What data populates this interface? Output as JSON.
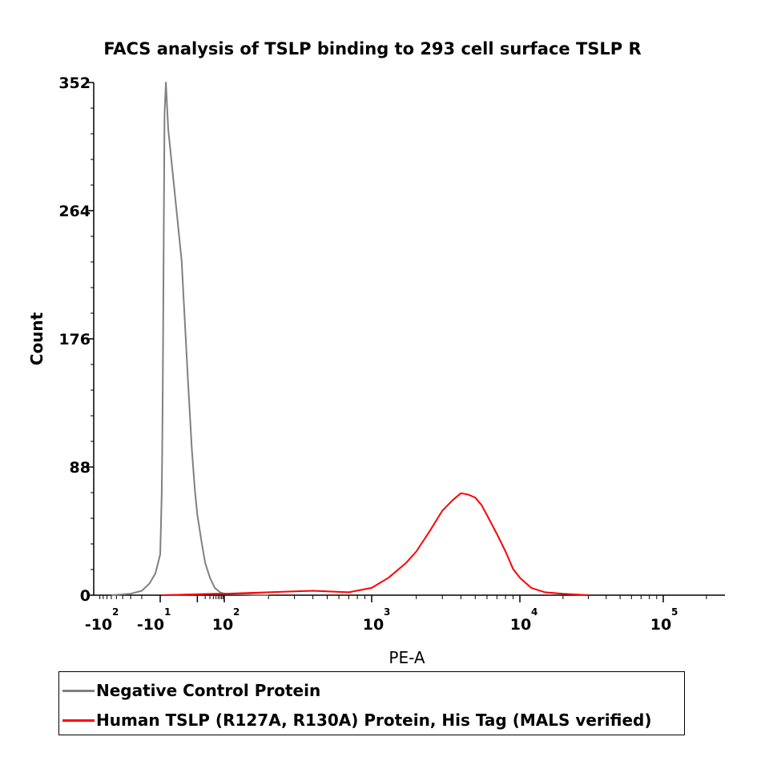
{
  "chart_data": {
    "type": "line",
    "title": "FACS analysis of  TSLP binding to 293 cell surface TSLP R",
    "xlabel": "PE-A",
    "ylabel": "Count",
    "x_scale": "biexponential (log above ~10^2)",
    "ylim": [
      0,
      352
    ],
    "y_ticks": [
      0,
      88,
      176,
      264,
      352
    ],
    "x_ticks": [
      {
        "base": "-10",
        "exp": "2"
      },
      {
        "base": "-10",
        "exp": "1"
      },
      {
        "base": "10",
        "exp": "2"
      },
      {
        "base": "10",
        "exp": "3"
      },
      {
        "base": "10",
        "exp": "4"
      },
      {
        "base": "10",
        "exp": "5"
      }
    ],
    "grid": false,
    "legend_position": "bottom",
    "series": [
      {
        "name": "Negative Control Protein",
        "color": "#808080",
        "x": [
          -60,
          -30,
          -20,
          -15,
          -12,
          -10,
          -8,
          -6,
          -5,
          -4,
          -3,
          -2,
          -1,
          0,
          2,
          4,
          6,
          8,
          10,
          15,
          20,
          30,
          45,
          70,
          100,
          200
        ],
        "y": [
          0,
          1,
          3,
          8,
          15,
          28,
          45,
          70,
          100,
          150,
          230,
          330,
          352,
          320,
          230,
          150,
          100,
          72,
          55,
          35,
          22,
          12,
          5,
          2,
          1,
          0
        ]
      },
      {
        "name": "Human TSLP (R127A, R130A) Protein, His Tag (MALS verified)",
        "color": "#ff0000",
        "x": [
          -5,
          50,
          100,
          200,
          400,
          700,
          1000,
          1300,
          1700,
          2000,
          2500,
          3000,
          3500,
          4000,
          4500,
          5000,
          5500,
          6000,
          7000,
          8000,
          9000,
          10000,
          12000,
          15000,
          20000,
          30000
        ],
        "y": [
          0,
          1,
          1,
          2,
          3,
          2,
          5,
          12,
          22,
          30,
          45,
          58,
          65,
          70,
          69,
          67,
          62,
          55,
          42,
          30,
          18,
          12,
          5,
          2,
          1,
          0
        ]
      }
    ]
  }
}
